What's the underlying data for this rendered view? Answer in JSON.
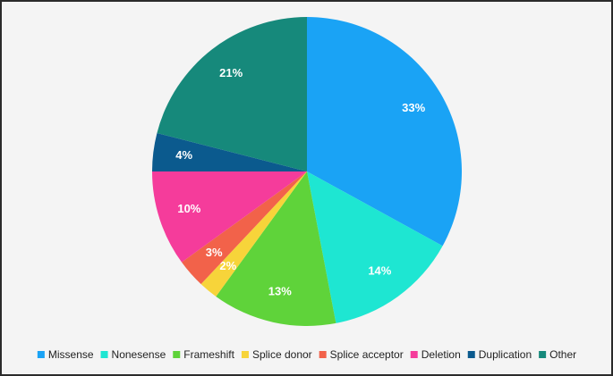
{
  "chart_data": {
    "type": "pie",
    "categories": [
      "Missense",
      "Nonesense",
      "Frameshift",
      "Splice donor",
      "Splice acceptor",
      "Deletion",
      "Duplication",
      "Other"
    ],
    "values": [
      33,
      14,
      13,
      2,
      3,
      10,
      4,
      21
    ],
    "value_labels": [
      "33%",
      "14%",
      "13%",
      "2%",
      "3%",
      "10%",
      "4%",
      "21%"
    ],
    "colors": [
      "#1aa3f5",
      "#1ee6d2",
      "#5fd33a",
      "#f7d43a",
      "#f2624a",
      "#f53c9b",
      "#0b5a8e",
      "#16897b"
    ]
  }
}
